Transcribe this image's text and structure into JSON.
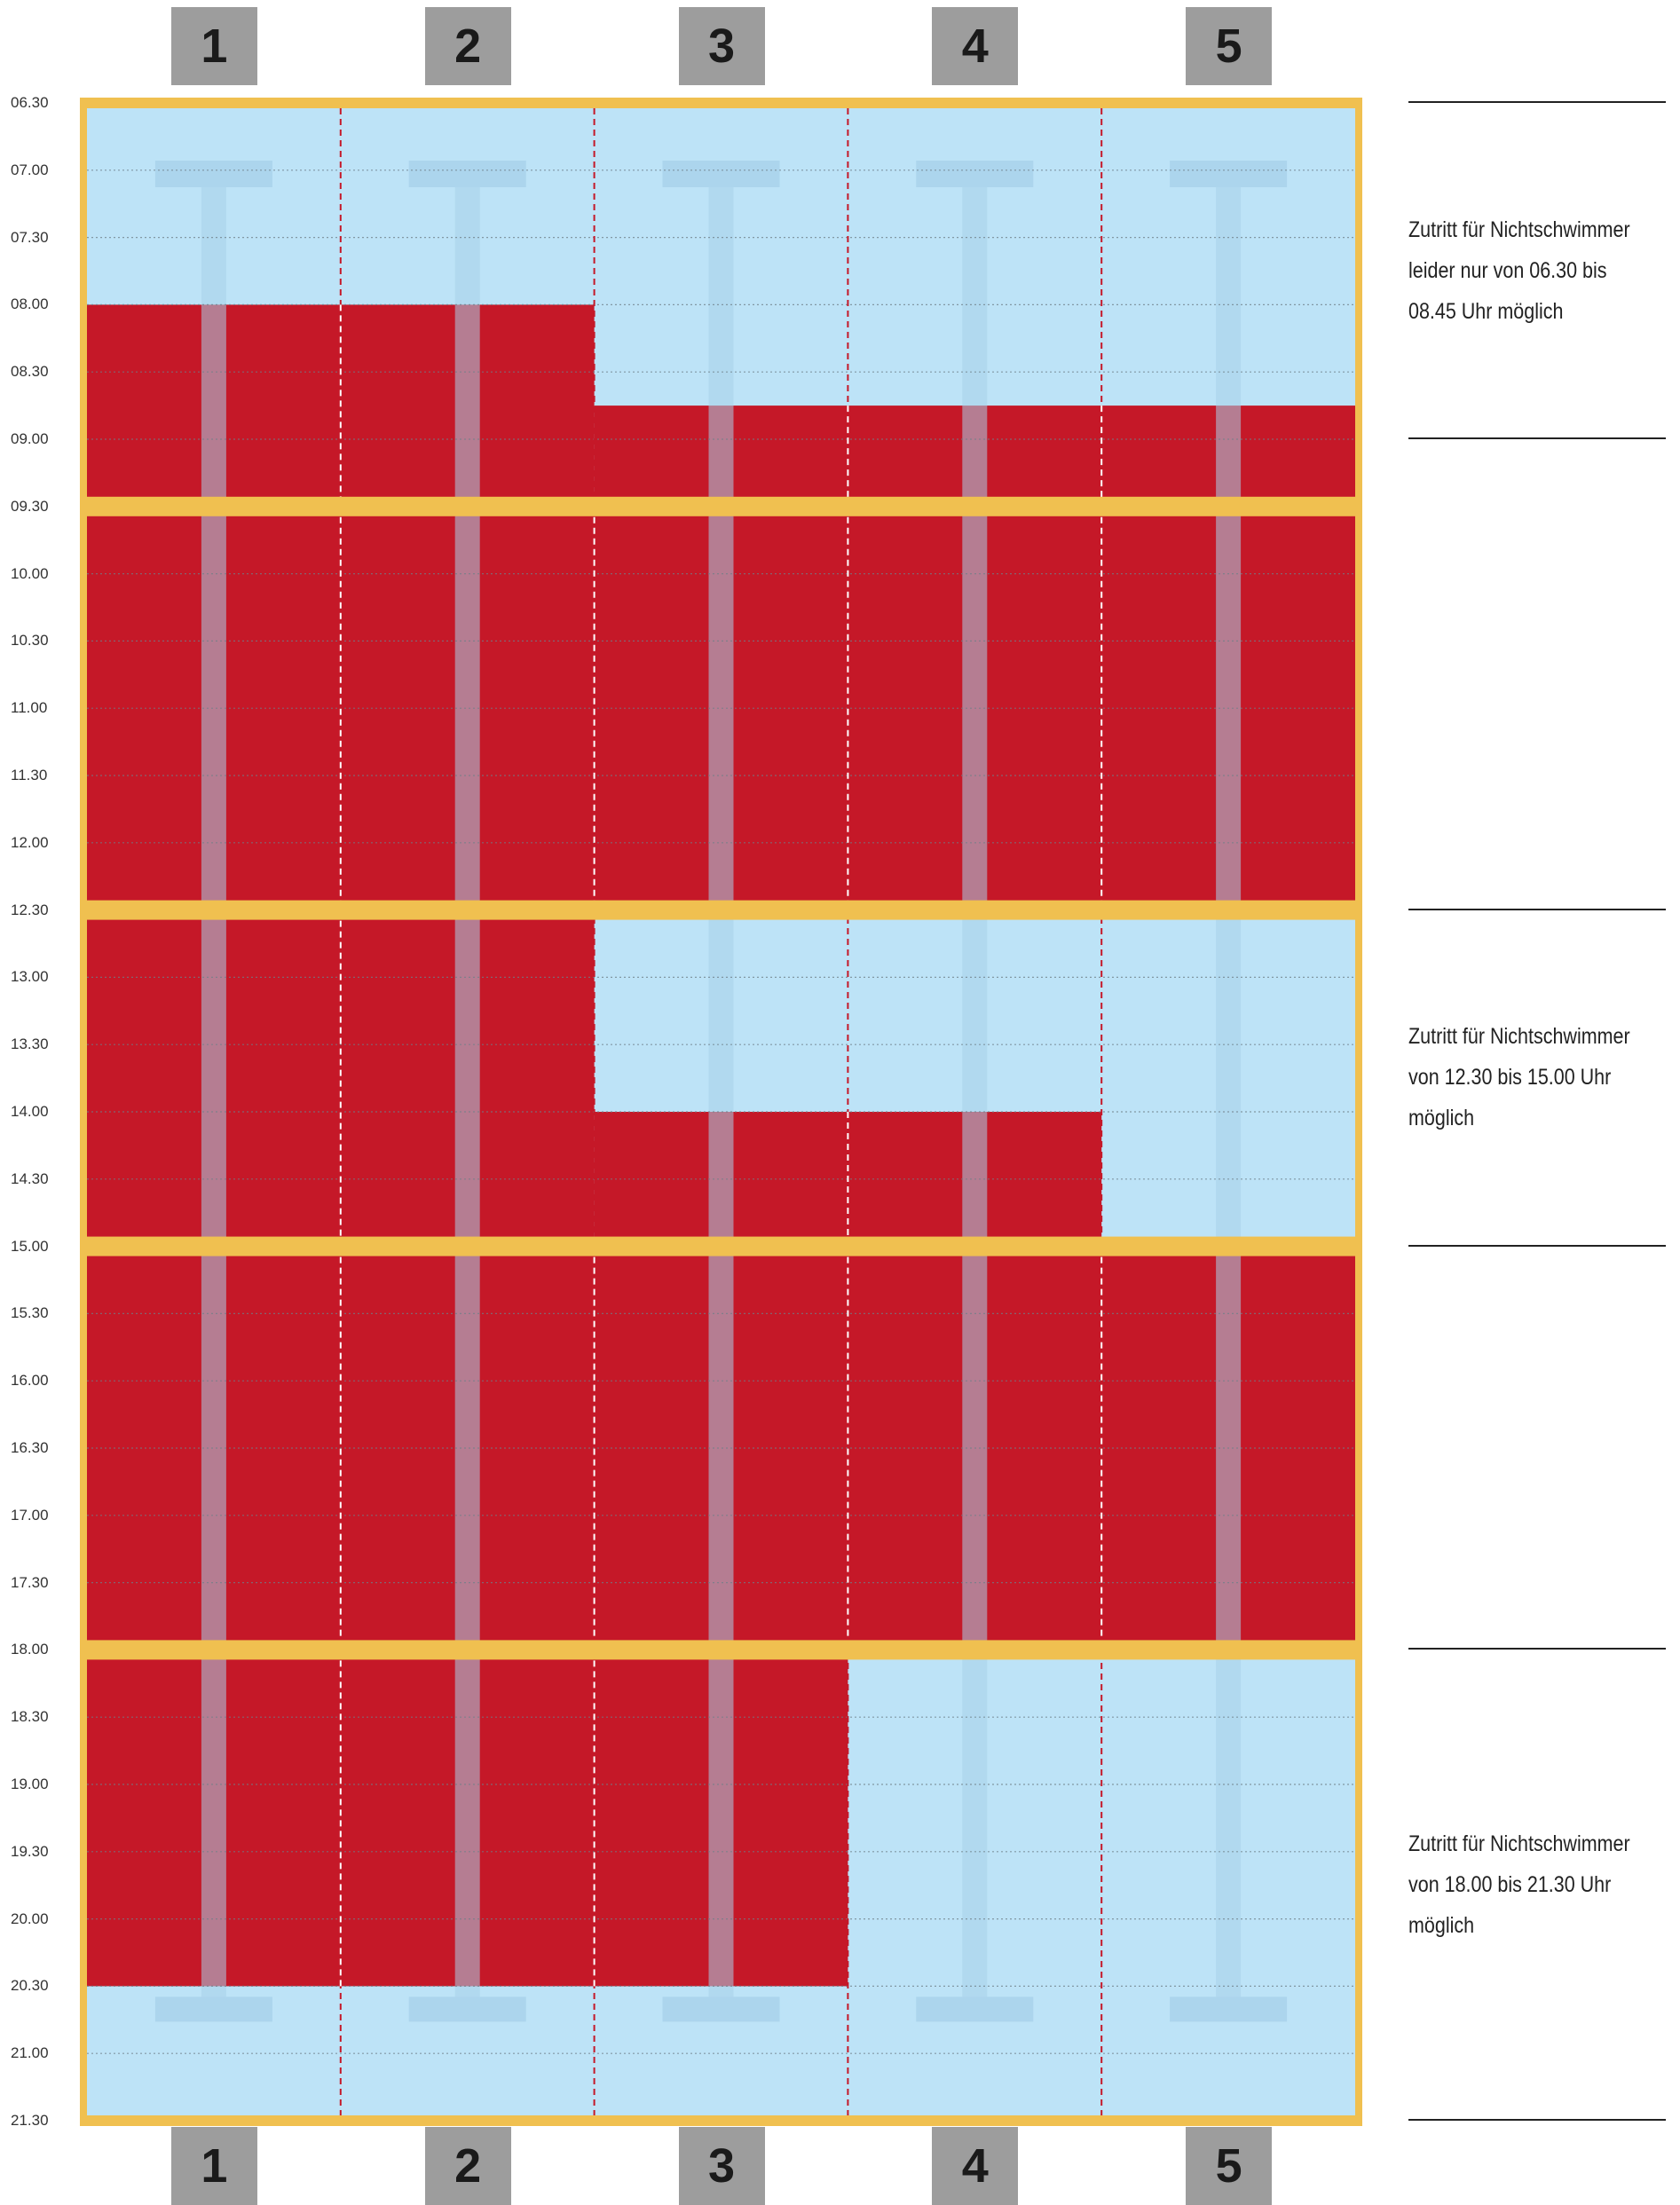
{
  "lanes": [
    "1",
    "2",
    "3",
    "4",
    "5"
  ],
  "times": [
    "06.30",
    "07.00",
    "07.30",
    "08.00",
    "08.30",
    "09.00",
    "09.30",
    "10.00",
    "10.30",
    "11.00",
    "11.30",
    "12.00",
    "12.30",
    "13.00",
    "13.30",
    "14.00",
    "14.30",
    "15.00",
    "15.30",
    "16.00",
    "16.30",
    "17.00",
    "17.30",
    "18.00",
    "18.30",
    "19.00",
    "19.30",
    "20.00",
    "20.30",
    "21.00",
    "21.30"
  ],
  "colors": {
    "occupied": "#c51828",
    "free": "#bde3f7",
    "frame": "#f0c050",
    "lane_marker": "#a8d1ea",
    "badge": "#9d9d9d"
  },
  "legend_meaning": {
    "occupied_color": "#c51828",
    "free_color": "#bde3f7"
  },
  "occupied_blocks": [
    {
      "lanes": [
        1,
        2
      ],
      "from": "08.00",
      "to": "09.30"
    },
    {
      "lanes": [
        3,
        4,
        5
      ],
      "from": "08.45",
      "to": "09.30"
    },
    {
      "lanes": [
        1,
        2,
        3,
        4,
        5
      ],
      "from": "09.30",
      "to": "12.30"
    },
    {
      "lanes": [
        1,
        2
      ],
      "from": "12.30",
      "to": "15.00"
    },
    {
      "lanes": [
        3,
        4
      ],
      "from": "14.00",
      "to": "15.00"
    },
    {
      "lanes": [
        1,
        2,
        3,
        4,
        5
      ],
      "from": "15.00",
      "to": "18.00"
    },
    {
      "lanes": [
        1,
        2,
        3
      ],
      "from": "18.00",
      "to": "20.30"
    }
  ],
  "session_breaks": [
    "09.30",
    "12.30",
    "15.00",
    "18.00"
  ],
  "notes": [
    {
      "from": "06.30",
      "to": "09.00",
      "lines": [
        "Zutritt für Nichtschwimmer",
        "leider nur von 06.30 bis",
        "08.45 Uhr möglich"
      ]
    },
    {
      "from": "12.30",
      "to": "15.00",
      "lines": [
        "Zutritt für Nichtschwimmer",
        "von 12.30 bis 15.00 Uhr",
        "möglich"
      ]
    },
    {
      "from": "18.00",
      "to": "21.30",
      "lines": [
        "Zutritt für Nichtschwimmer",
        "von 18.00 bis 21.30 Uhr",
        "möglich"
      ]
    }
  ]
}
